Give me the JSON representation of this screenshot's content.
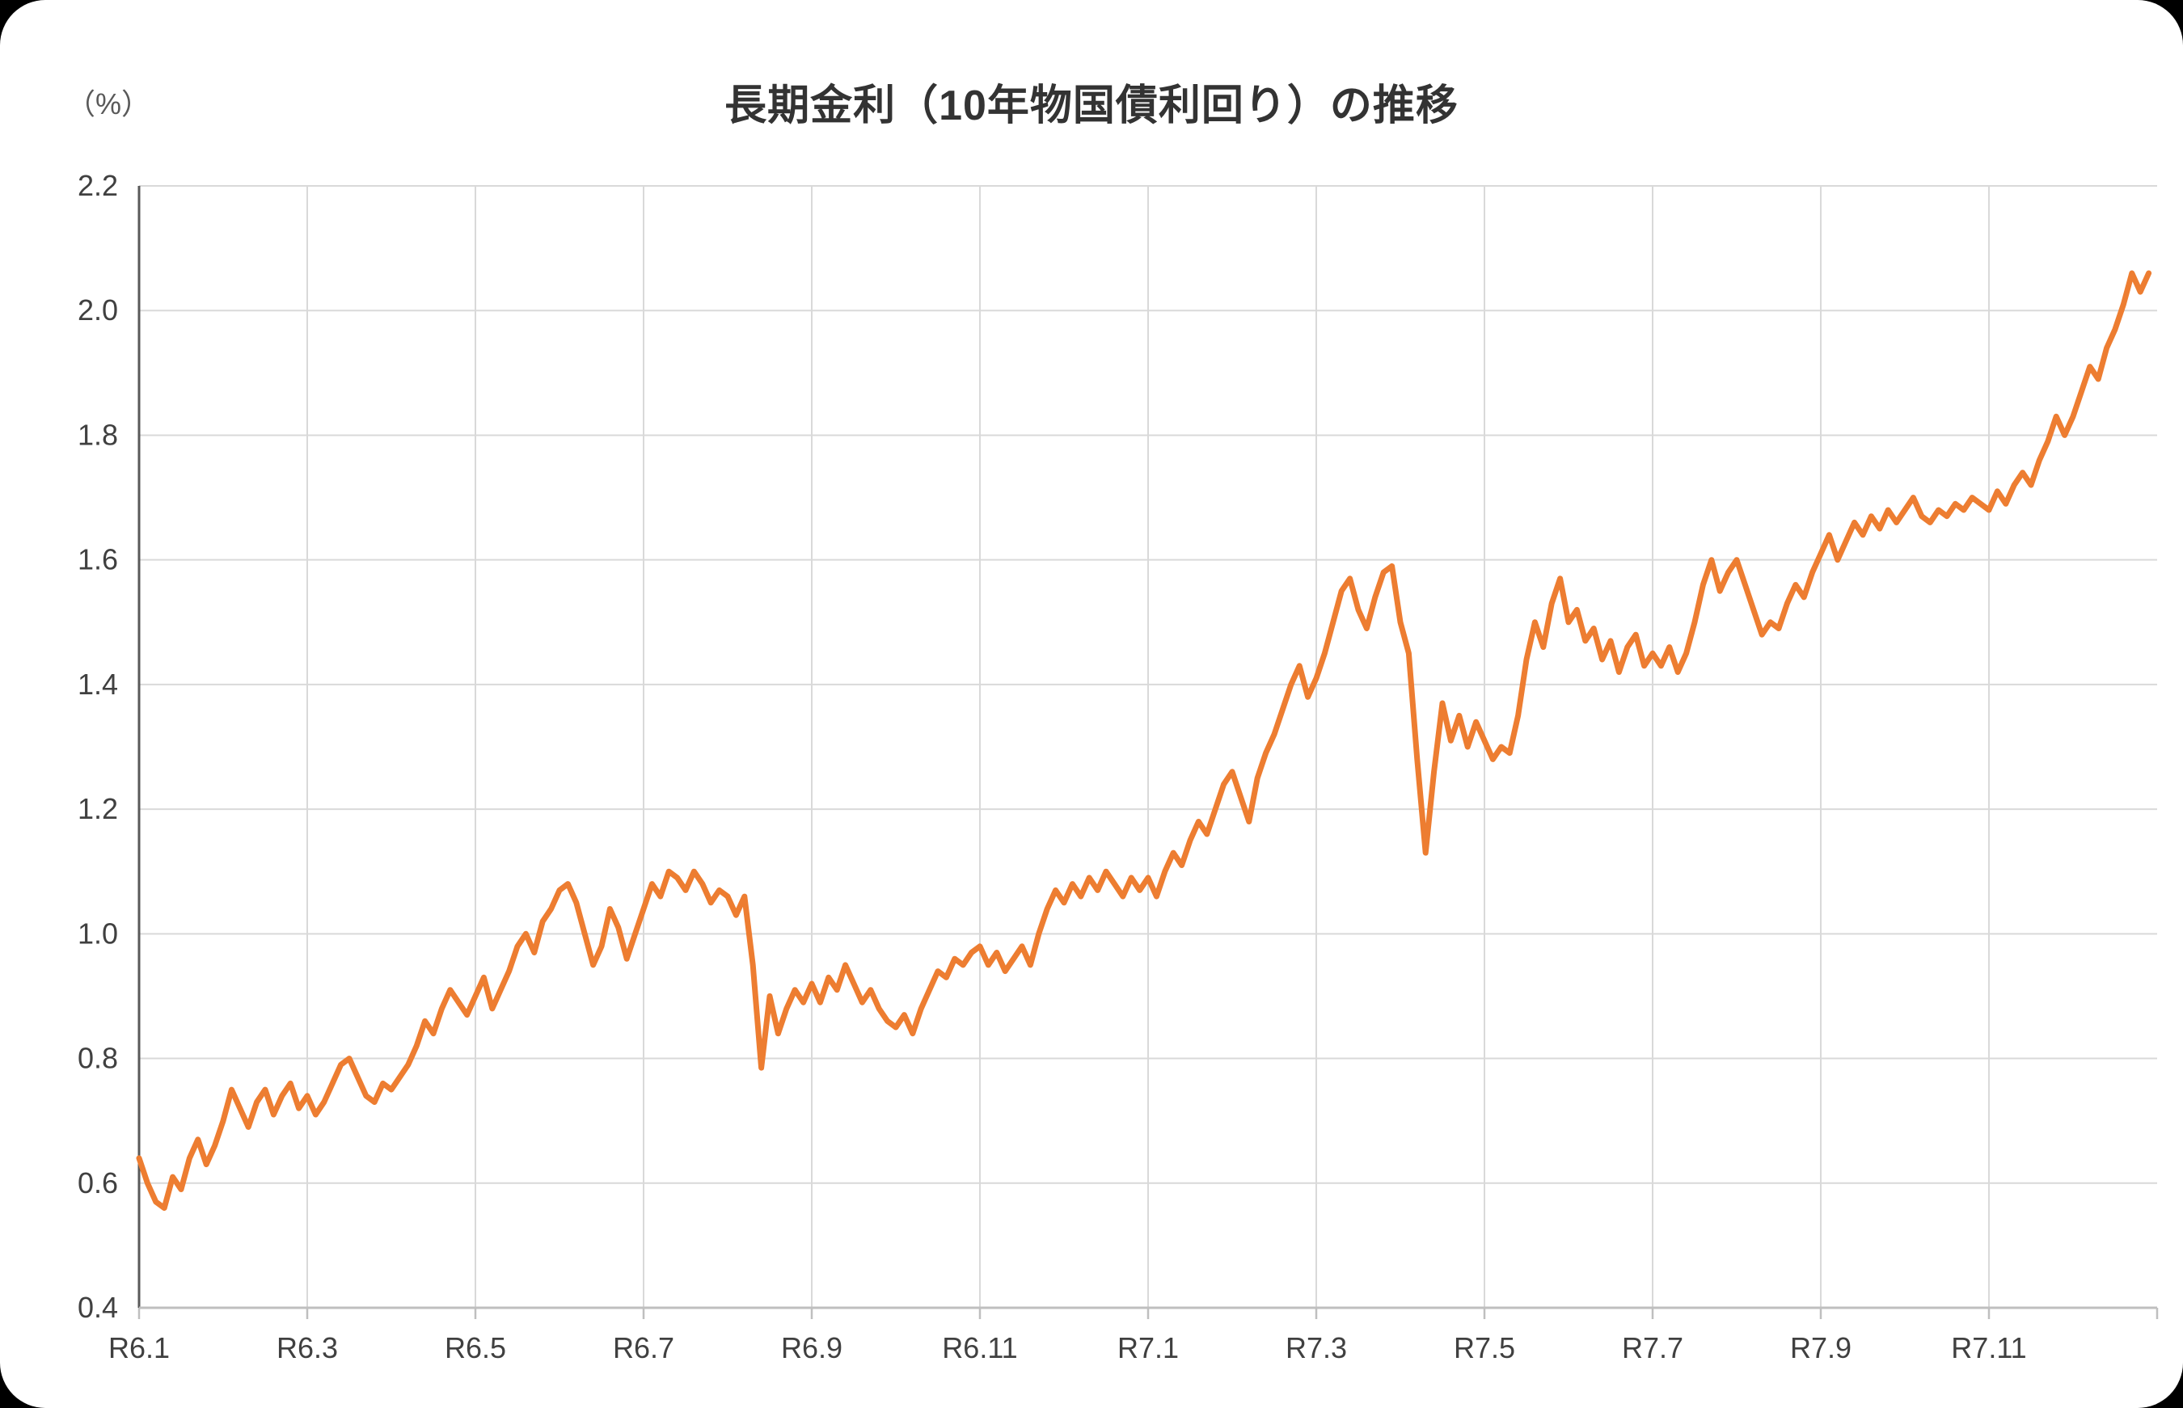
{
  "page": {
    "background_color": "#000000",
    "card_background_color": "#ffffff"
  },
  "chart_data": {
    "type": "line",
    "title": "長期金利（10年物国債利回り）の推移",
    "y_unit_label": "（%）",
    "ylabel": "",
    "xlabel": "",
    "ylim": [
      0.4,
      2.2
    ],
    "y_ticks": [
      0.4,
      0.6,
      0.8,
      1.0,
      1.2,
      1.4,
      1.6,
      1.8,
      2.0,
      2.2
    ],
    "x_tick_labels": [
      "R6.1",
      "R6.3",
      "R6.5",
      "R6.7",
      "R6.9",
      "R6.11",
      "R7.1",
      "R7.3",
      "R7.5",
      "R7.7",
      "R7.9",
      "R7.11"
    ],
    "x_tick_month_positions": [
      0,
      2,
      4,
      6,
      8,
      10,
      12,
      14,
      16,
      18,
      20,
      22
    ],
    "months_total": 24,
    "points_per_month": 10,
    "grid": true,
    "legend": "none",
    "line_color": "#ED7D31",
    "grid_color": "#D9D9D9",
    "axis_color": "#595959",
    "x_axis_color": "#BFBFBF",
    "tick_label_color": "#404040",
    "series": [
      {
        "name": "長期金利（10年物国債利回り）",
        "values": [
          0.64,
          0.6,
          0.57,
          0.56,
          0.61,
          0.59,
          0.64,
          0.67,
          0.63,
          0.66,
          0.7,
          0.75,
          0.72,
          0.69,
          0.73,
          0.75,
          0.71,
          0.74,
          0.76,
          0.72,
          0.74,
          0.71,
          0.73,
          0.76,
          0.79,
          0.8,
          0.77,
          0.74,
          0.73,
          0.76,
          0.75,
          0.77,
          0.79,
          0.82,
          0.86,
          0.84,
          0.88,
          0.91,
          0.89,
          0.87,
          0.9,
          0.93,
          0.88,
          0.91,
          0.94,
          0.98,
          1.0,
          0.97,
          1.02,
          1.04,
          1.07,
          1.08,
          1.05,
          1.0,
          0.95,
          0.98,
          1.04,
          1.01,
          0.96,
          1.0,
          1.04,
          1.08,
          1.06,
          1.1,
          1.09,
          1.07,
          1.1,
          1.08,
          1.05,
          1.07,
          1.06,
          1.03,
          1.06,
          0.95,
          0.785,
          0.9,
          0.84,
          0.88,
          0.91,
          0.89,
          0.92,
          0.89,
          0.93,
          0.91,
          0.95,
          0.92,
          0.89,
          0.91,
          0.88,
          0.86,
          0.85,
          0.87,
          0.84,
          0.88,
          0.91,
          0.94,
          0.93,
          0.96,
          0.95,
          0.97,
          0.98,
          0.95,
          0.97,
          0.94,
          0.96,
          0.98,
          0.95,
          1.0,
          1.04,
          1.07,
          1.05,
          1.08,
          1.06,
          1.09,
          1.07,
          1.1,
          1.08,
          1.06,
          1.09,
          1.07,
          1.09,
          1.06,
          1.1,
          1.13,
          1.11,
          1.15,
          1.18,
          1.16,
          1.2,
          1.24,
          1.26,
          1.22,
          1.18,
          1.25,
          1.29,
          1.32,
          1.36,
          1.4,
          1.43,
          1.38,
          1.41,
          1.45,
          1.5,
          1.55,
          1.57,
          1.52,
          1.49,
          1.54,
          1.58,
          1.59,
          1.5,
          1.45,
          1.28,
          1.13,
          1.26,
          1.37,
          1.31,
          1.35,
          1.3,
          1.34,
          1.31,
          1.28,
          1.3,
          1.29,
          1.35,
          1.44,
          1.5,
          1.46,
          1.53,
          1.57,
          1.5,
          1.52,
          1.47,
          1.49,
          1.44,
          1.47,
          1.42,
          1.46,
          1.48,
          1.43,
          1.45,
          1.43,
          1.46,
          1.42,
          1.45,
          1.5,
          1.56,
          1.6,
          1.55,
          1.58,
          1.6,
          1.56,
          1.52,
          1.48,
          1.5,
          1.49,
          1.53,
          1.56,
          1.54,
          1.58,
          1.61,
          1.64,
          1.6,
          1.63,
          1.66,
          1.64,
          1.67,
          1.65,
          1.68,
          1.66,
          1.68,
          1.7,
          1.67,
          1.66,
          1.68,
          1.67,
          1.69,
          1.68,
          1.7,
          1.69,
          1.68,
          1.71,
          1.69,
          1.72,
          1.74,
          1.72,
          1.76,
          1.79,
          1.83,
          1.8,
          1.83,
          1.87,
          1.91,
          1.89,
          1.94,
          1.97,
          2.01,
          2.06,
          2.03,
          2.06
        ]
      }
    ]
  }
}
